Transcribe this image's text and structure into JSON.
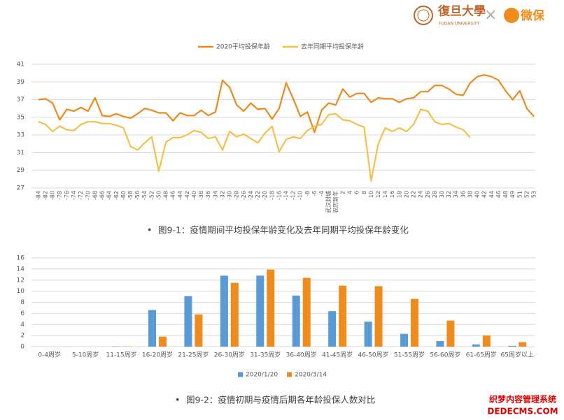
{
  "header": {
    "university": "復旦大學",
    "university_en": "FUDAN UNIVERSITY",
    "separator": "×",
    "partner": "微保"
  },
  "watermark": {
    "line1": "织梦内容管理系统",
    "line2": "DEDECMS.COM"
  },
  "chart_data": [
    {
      "type": "line",
      "caption_bullet": "•",
      "caption": "图9-1：疫情期间平均投保年龄变化及去年同期平均投保年龄变化",
      "categories": [
        -84,
        -82,
        -80,
        -78,
        -76,
        -74,
        -72,
        -70,
        -68,
        -66,
        -64,
        -62,
        -60,
        -58,
        -56,
        -54,
        -52,
        -50,
        -48,
        -46,
        -44,
        -42,
        -40,
        -38,
        -36,
        -34,
        -32,
        -30,
        -28,
        -26,
        -24,
        -22,
        -20,
        -18,
        -16,
        -14,
        -12,
        -10,
        -8,
        -6,
        -4,
        "武汉封城",
        "农历新年",
        2,
        4,
        6,
        8,
        10,
        12,
        14,
        16,
        18,
        20,
        22,
        24,
        26,
        28,
        30,
        32,
        34,
        36,
        38,
        40,
        42,
        44,
        46,
        48,
        49,
        51,
        52,
        53
      ],
      "series": [
        {
          "name": "2020平均投保年龄",
          "color": "#ee8a1c",
          "values": [
            37.0,
            37.1,
            36.6,
            34.7,
            35.9,
            35.7,
            36.1,
            35.7,
            37.2,
            35.2,
            35.1,
            35.4,
            35.1,
            34.9,
            35.4,
            36.0,
            35.8,
            35.5,
            35.5,
            34.6,
            35.5,
            35.2,
            35.2,
            35.8,
            35.2,
            35.6,
            39.2,
            38.4,
            36.4,
            35.7,
            36.6,
            35.9,
            36.0,
            34.8,
            36.0,
            38.9,
            37.1,
            35.1,
            35.6,
            33.3,
            35.8,
            36.6,
            36.4,
            38.2,
            37.3,
            37.7,
            37.7,
            36.7,
            37.2,
            37.1,
            37.1,
            36.7,
            37.1,
            37.2,
            37.9,
            37.9,
            38.6,
            38.6,
            38.2,
            37.6,
            37.5,
            38.9,
            39.6,
            39.8,
            39.6,
            39.2,
            38.0,
            37.0,
            38.0,
            36.0,
            35.1
          ]
        },
        {
          "name": "去年同期平均投保年龄",
          "color": "#f5c04a",
          "values": [
            34.5,
            34.2,
            33.4,
            34.0,
            33.6,
            33.5,
            34.2,
            34.5,
            34.5,
            34.3,
            34.3,
            34.1,
            33.8,
            31.7,
            31.3,
            32.1,
            32.8,
            28.9,
            32.2,
            32.7,
            32.7,
            33.0,
            33.5,
            33.3,
            32.6,
            32.8,
            31.3,
            33.4,
            32.8,
            33.1,
            32.6,
            32.1,
            33.2,
            34.0,
            31.1,
            32.5,
            32.8,
            32.6,
            33.5,
            34.0,
            34.2,
            35.3,
            35.4,
            34.7,
            34.6,
            34.2,
            33.9,
            27.8,
            32.0,
            33.8,
            33.4,
            33.8,
            33.4,
            34.2,
            35.9,
            35.7,
            34.5,
            34.2,
            34.3,
            33.9,
            33.6,
            32.7,
            null,
            null,
            null,
            null,
            null,
            null,
            null,
            null,
            null
          ]
        }
      ],
      "ylim": [
        27,
        41
      ],
      "yticks": [
        27,
        29,
        31,
        33,
        35,
        37,
        39,
        41
      ],
      "grid": true,
      "legend": "top"
    },
    {
      "type": "bar",
      "caption_bullet": "•",
      "caption": "图9-2：疫情初期与疫情后期各年龄投保人数对比",
      "categories": [
        "0-4周岁",
        "5-10周岁",
        "11-15周岁",
        "16-20周岁",
        "21-25周岁",
        "26-30周岁",
        "31-35周岁",
        "36-40周岁",
        "41-45周岁",
        "46-50周岁",
        "51-55周岁",
        "56-60周岁",
        "61-65周岁",
        "65周岁以上"
      ],
      "series": [
        {
          "name": "2020/1/20",
          "color": "#5b9bd5",
          "values": [
            0,
            0,
            0.05,
            6.6,
            9.1,
            12.8,
            12.8,
            9.2,
            6.4,
            4.5,
            2.3,
            1.0,
            0.4,
            0.15
          ]
        },
        {
          "name": "2020/3/14",
          "color": "#f08c1e",
          "values": [
            0,
            0,
            0.05,
            1.8,
            5.8,
            11.5,
            13.9,
            12.4,
            11.0,
            10.9,
            8.6,
            4.7,
            2.0,
            0.8
          ]
        }
      ],
      "ylim": [
        0,
        16
      ],
      "yticks": [
        0,
        2,
        4,
        6,
        8,
        10,
        12,
        14,
        16
      ],
      "grid": true,
      "legend": "bottom"
    }
  ]
}
